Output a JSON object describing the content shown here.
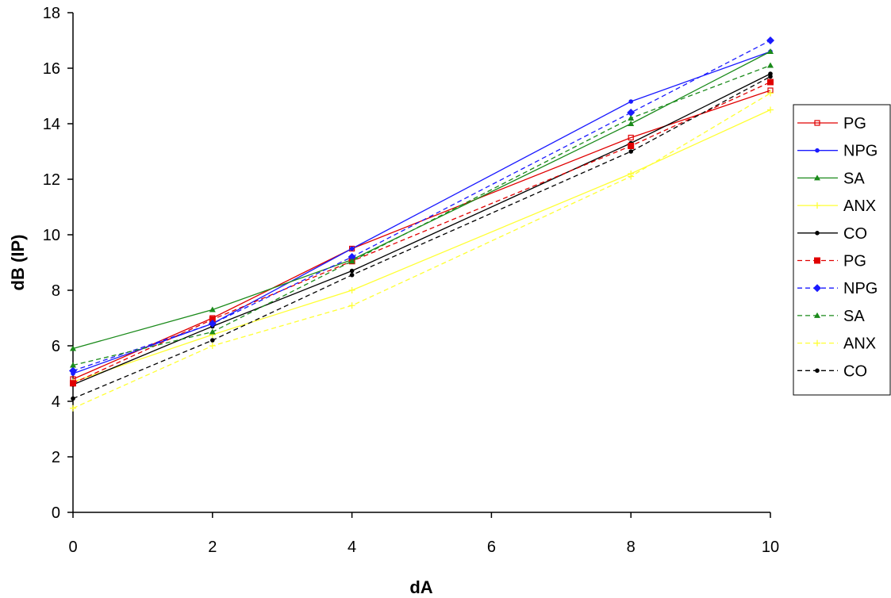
{
  "chart_data": {
    "type": "line",
    "xlabel": "dA",
    "ylabel": "dB (IP)",
    "xlim": [
      0,
      10
    ],
    "ylim": [
      0,
      18
    ],
    "xticks": [
      0,
      2,
      4,
      6,
      8,
      10
    ],
    "yticks": [
      0,
      2,
      4,
      6,
      8,
      10,
      12,
      14,
      16,
      18
    ],
    "grid": false,
    "legend_position": "right",
    "series": [
      {
        "name": "PG",
        "color": "#e00000",
        "dash": "solid",
        "marker": "dash",
        "x": [
          0,
          2,
          4,
          8,
          10
        ],
        "y": [
          4.8,
          7.0,
          9.5,
          13.5,
          15.2
        ]
      },
      {
        "name": "NPG",
        "color": "#1a1aff",
        "dash": "solid",
        "marker": "dot",
        "x": [
          0,
          2,
          4,
          8,
          10
        ],
        "y": [
          5.0,
          6.8,
          9.5,
          14.8,
          16.6
        ]
      },
      {
        "name": "SA",
        "color": "#1a8a1a",
        "dash": "solid",
        "marker": "triangle",
        "x": [
          0,
          2,
          4,
          8,
          10
        ],
        "y": [
          5.9,
          7.3,
          9.1,
          14.0,
          16.6
        ]
      },
      {
        "name": "ANX",
        "color": "#ffff33",
        "dash": "solid",
        "marker": "plus",
        "x": [
          0,
          2,
          4,
          8,
          10
        ],
        "y": [
          4.7,
          6.4,
          8.0,
          12.2,
          14.5
        ]
      },
      {
        "name": "CO",
        "color": "#000000",
        "dash": "solid",
        "marker": "dot",
        "x": [
          0,
          2,
          4,
          8,
          10
        ],
        "y": [
          4.6,
          6.7,
          8.7,
          13.3,
          15.8
        ]
      },
      {
        "name": "PG",
        "color": "#e00000",
        "dash": "dashed",
        "marker": "square",
        "x": [
          0,
          2,
          4,
          8,
          10
        ],
        "y": [
          4.65,
          6.95,
          9.05,
          13.2,
          15.5
        ]
      },
      {
        "name": "NPG",
        "color": "#1a1aff",
        "dash": "dashed",
        "marker": "diamond",
        "x": [
          0,
          2,
          4,
          8,
          10
        ],
        "y": [
          5.1,
          6.8,
          9.2,
          14.4,
          17.0
        ]
      },
      {
        "name": "SA",
        "color": "#1a8a1a",
        "dash": "dashed",
        "marker": "triangle",
        "x": [
          0,
          2,
          4,
          8,
          10
        ],
        "y": [
          5.3,
          6.5,
          9.05,
          14.2,
          16.1
        ]
      },
      {
        "name": "ANX",
        "color": "#ffff33",
        "dash": "dashed",
        "marker": "plus",
        "x": [
          0,
          2,
          4,
          8,
          10
        ],
        "y": [
          3.75,
          6.0,
          7.45,
          12.1,
          15.1
        ]
      },
      {
        "name": "CO",
        "color": "#000000",
        "dash": "dashed",
        "marker": "dot",
        "x": [
          0,
          2,
          4,
          8,
          10
        ],
        "y": [
          4.1,
          6.2,
          8.55,
          13.0,
          15.7
        ]
      }
    ]
  }
}
